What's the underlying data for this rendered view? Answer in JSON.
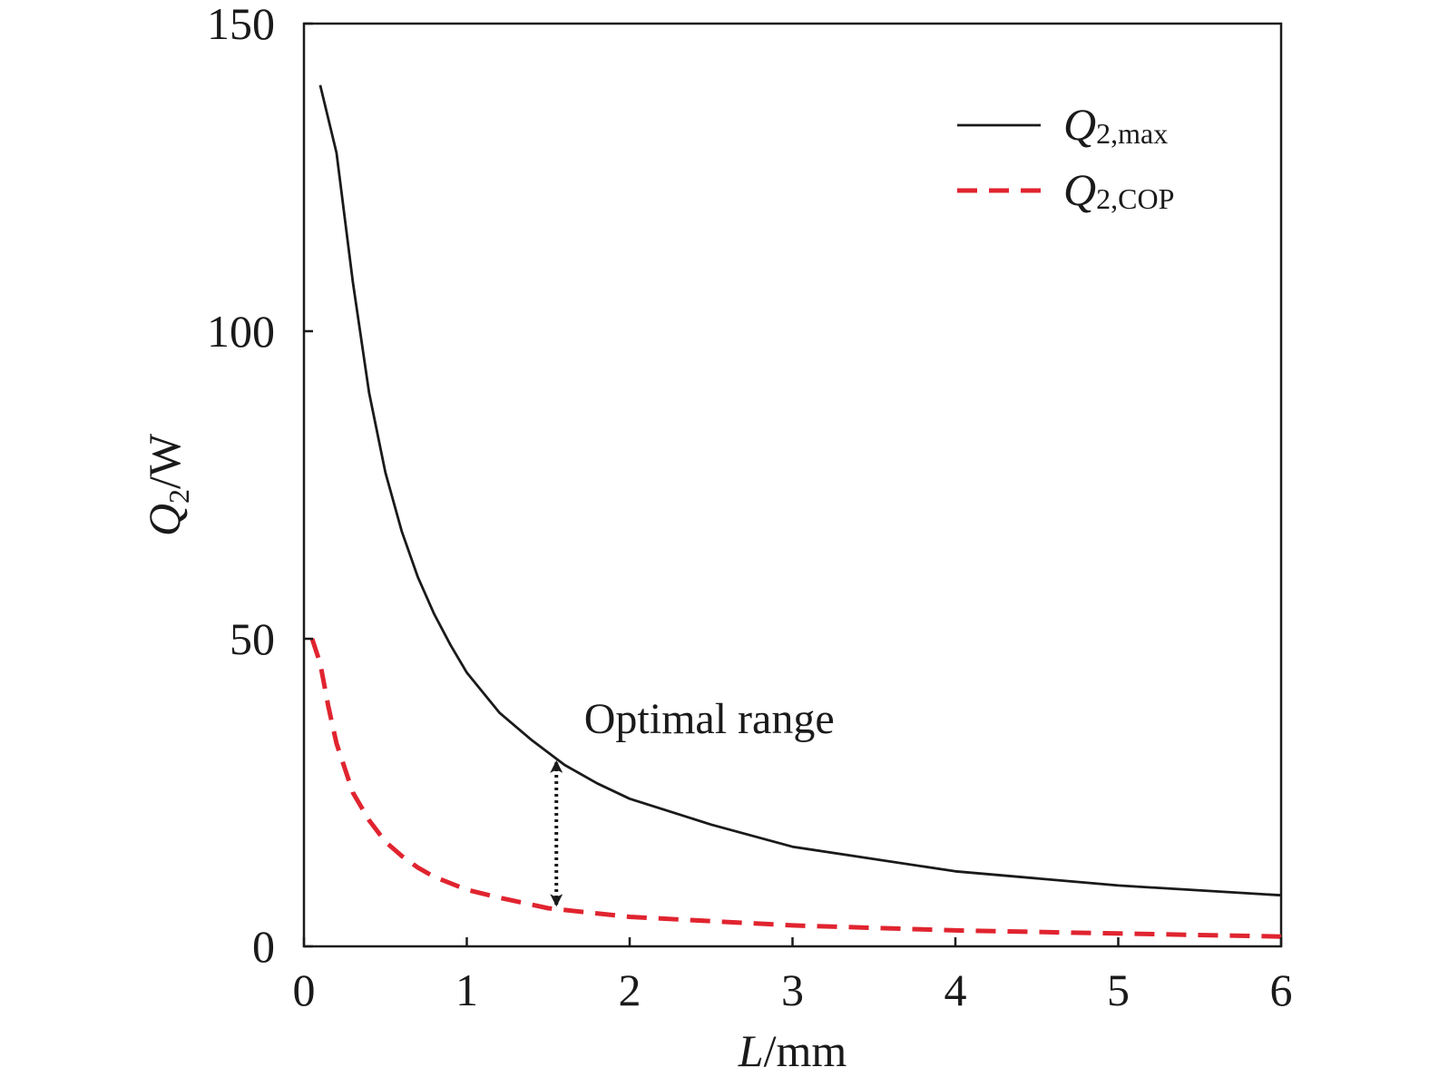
{
  "chart_data": {
    "type": "line",
    "xlabel": {
      "var": "L",
      "unit": "/mm"
    },
    "ylabel": {
      "var": "Q",
      "sub": "2",
      "unit": "/W"
    },
    "xlim": [
      0,
      6
    ],
    "ylim": [
      0,
      150
    ],
    "xticks": [
      0,
      1,
      2,
      3,
      4,
      5,
      6
    ],
    "yticks": [
      0,
      50,
      100,
      150
    ],
    "grid": false,
    "legend_position": "top-right",
    "series": [
      {
        "name": {
          "var": "Q",
          "sub": "2,max"
        },
        "style": "solid",
        "color": "#1a1a1a",
        "x": [
          0.1,
          0.2,
          0.3,
          0.4,
          0.5,
          0.6,
          0.7,
          0.8,
          0.9,
          1.0,
          1.2,
          1.4,
          1.6,
          1.8,
          2.0,
          2.5,
          3.0,
          4.0,
          5.0,
          6.0
        ],
        "y": [
          140,
          129,
          108,
          90,
          77,
          67.5,
          60,
          54,
          49,
          44.5,
          38,
          33.5,
          29.5,
          26.5,
          24,
          19.8,
          16.2,
          12.2,
          9.9,
          8.3
        ]
      },
      {
        "name": {
          "var": "Q",
          "sub": "2,COP"
        },
        "style": "dashed",
        "color": "#e0242f",
        "x": [
          0.05,
          0.1,
          0.15,
          0.2,
          0.3,
          0.4,
          0.5,
          0.6,
          0.7,
          0.8,
          1.0,
          1.2,
          1.5,
          2.0,
          3.0,
          4.0,
          5.0,
          6.0
        ],
        "y": [
          50,
          46,
          39,
          33,
          25,
          20.5,
          17,
          14.7,
          12.8,
          11.3,
          9.2,
          7.9,
          6.2,
          4.8,
          3.4,
          2.6,
          2.1,
          1.6
        ]
      }
    ],
    "annotations": [
      {
        "type": "double-arrow",
        "x": 1.55,
        "y_from": 6.2,
        "y_to": 30.5,
        "style": "dotted",
        "color": "#1a1a1a"
      },
      {
        "type": "text",
        "text": "Optimal range",
        "x": 1.72,
        "y": 37
      }
    ]
  }
}
